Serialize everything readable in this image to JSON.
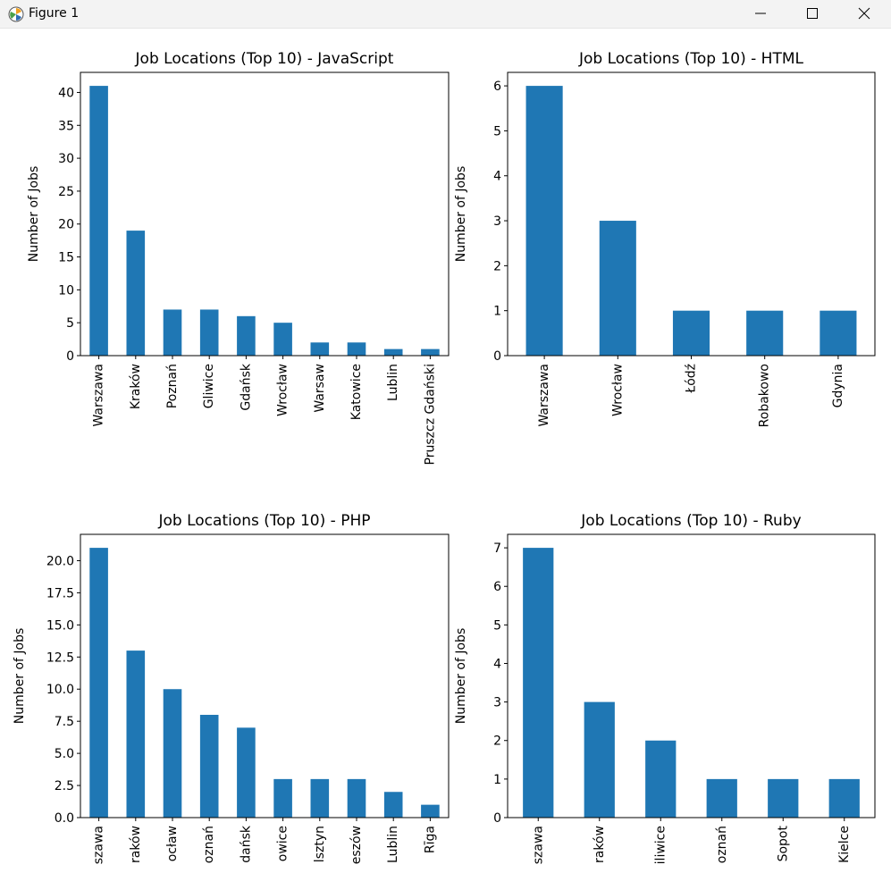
{
  "window": {
    "title": "Figure 1"
  },
  "colors": {
    "bar": "#1f77b4",
    "axis": "#000000",
    "background": "#ffffff"
  },
  "icons": {
    "app": "matplotlib-logo-icon",
    "minimize": "minimize-icon",
    "maximize": "maximize-icon",
    "close": "close-icon"
  },
  "chart_data": [
    {
      "type": "bar",
      "title": "Job Locations (Top 10) - JavaScript",
      "xlabel": "",
      "ylabel": "Number of Jobs",
      "categories": [
        "Warszawa",
        "Kraków",
        "Poznań",
        "Gliwice",
        "Gdańsk",
        "Wrocław",
        "Warsaw",
        "Katowice",
        "Lublin",
        "Pruszcz Gdański"
      ],
      "values": [
        41,
        19,
        7,
        7,
        6,
        5,
        2,
        2,
        1,
        1
      ],
      "ylim": [
        0,
        43.05
      ],
      "yticks": [
        0,
        5,
        10,
        15,
        20,
        25,
        30,
        35,
        40
      ],
      "ytick_labels": [
        "0",
        "5",
        "10",
        "15",
        "20",
        "25",
        "30",
        "35",
        "40"
      ],
      "grid": false,
      "tick_label_rotation": 90
    },
    {
      "type": "bar",
      "title": "Job Locations (Top 10) - HTML",
      "xlabel": "",
      "ylabel": "Number of Jobs",
      "categories": [
        "Warszawa",
        "Wrocław",
        "Łódź",
        "Robakowo",
        "Gdynia"
      ],
      "values": [
        6,
        3,
        1,
        1,
        1
      ],
      "ylim": [
        0,
        6.3
      ],
      "yticks": [
        0,
        1,
        2,
        3,
        4,
        5,
        6
      ],
      "ytick_labels": [
        "0",
        "1",
        "2",
        "3",
        "4",
        "5",
        "6"
      ],
      "grid": false,
      "tick_label_rotation": 90
    },
    {
      "type": "bar",
      "title": "Job Locations (Top 10) - PHP",
      "xlabel": "",
      "ylabel": "Number of Jobs",
      "categories": [
        "szawa",
        "raków",
        "ocław",
        "oznań",
        "dańsk",
        "owice",
        "lsztyn",
        "eszów",
        "Lublin",
        "Rīga"
      ],
      "values": [
        21,
        13,
        10,
        8,
        7,
        3,
        3,
        3,
        2,
        1
      ],
      "ylim": [
        0,
        22.05
      ],
      "yticks": [
        0,
        2.5,
        5,
        7.5,
        10,
        12.5,
        15,
        17.5,
        20
      ],
      "ytick_labels": [
        "0.0",
        "2.5",
        "5.0",
        "7.5",
        "10.0",
        "12.5",
        "15.0",
        "17.5",
        "20.0"
      ],
      "grid": false,
      "tick_label_rotation": 90
    },
    {
      "type": "bar",
      "title": "Job Locations (Top 10) - Ruby",
      "xlabel": "",
      "ylabel": "Number of Jobs",
      "categories": [
        "szawa",
        "raków",
        "iliwice",
        "oznań",
        "Sopot",
        "Kielce"
      ],
      "values": [
        7,
        3,
        2,
        1,
        1,
        1
      ],
      "ylim": [
        0,
        7.35
      ],
      "yticks": [
        0,
        1,
        2,
        3,
        4,
        5,
        6,
        7
      ],
      "ytick_labels": [
        "0",
        "1",
        "2",
        "3",
        "4",
        "5",
        "6",
        "7"
      ],
      "grid": false,
      "tick_label_rotation": 90
    }
  ]
}
